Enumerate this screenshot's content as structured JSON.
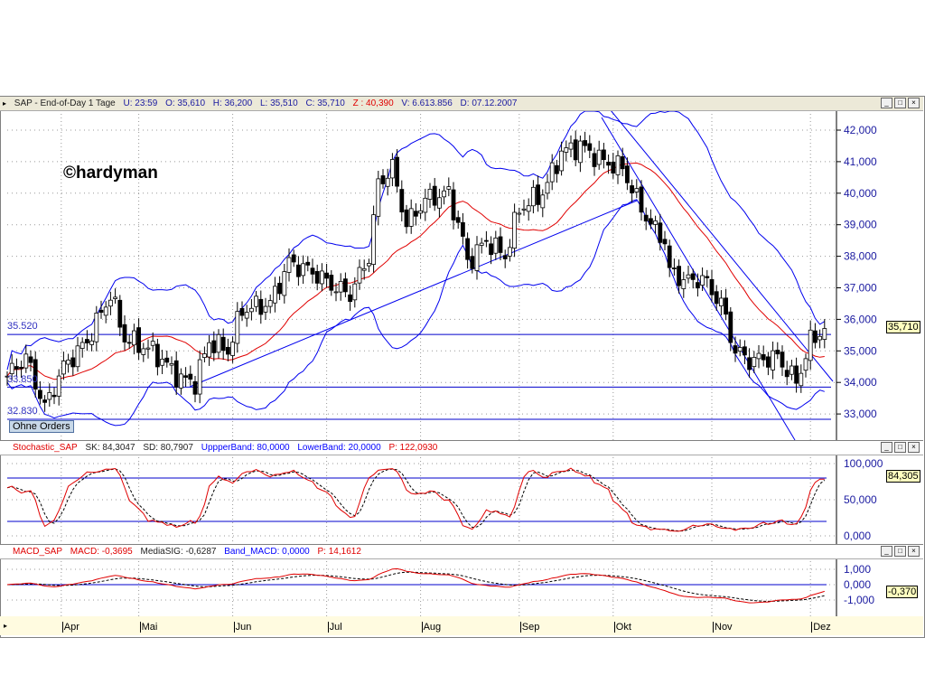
{
  "header": {
    "symbol": "SAP - End-of-Day 1 Tage",
    "u": "U: 23:59",
    "o": "O: 35,610",
    "h": "H: 36,200",
    "l": "L: 35,510",
    "c": "C: 35,710",
    "z": "Z : 40,390",
    "v": "V: 6.613.856",
    "d": "D: 07.12.2007"
  },
  "stoch_header": {
    "name": "Stochastic_SAP",
    "sk": "SK: 84,3047",
    "sd": "SD: 80,7907",
    "upper": "UppperBand: 80,0000",
    "lower": "LowerBand: 20,0000",
    "p": "P: 122,0930"
  },
  "macd_header": {
    "name": "MACD_SAP",
    "macd": "MACD: -0,3695",
    "sig": "MediaSIG: -0,6287",
    "band": "Band_MACD: 0,0000",
    "p": "P: 14,1612"
  },
  "watermark": "©hardyman",
  "orders_button": "Ohne Orders",
  "price_levels": [
    {
      "label": "35.520",
      "value": 35.52
    },
    {
      "label": "33.850",
      "value": 33.85
    },
    {
      "label": "32.830",
      "value": 32.83
    }
  ],
  "price_tag": "35,710",
  "stoch_tag": "84,305",
  "macd_tag": "-0,370",
  "window_buttons": {
    "min": "_",
    "max": "□",
    "close": "×"
  },
  "chart_data": {
    "type": "candlestick",
    "title": "SAP - End-of-Day 1 Tage",
    "price_axis": {
      "ylim": [
        32.2,
        42.6
      ],
      "ticks": [
        "42,000",
        "41,000",
        "40,000",
        "39,000",
        "38,000",
        "37,000",
        "36,000",
        "35,000",
        "34,000",
        "33,000"
      ],
      "tick_values": [
        42,
        41,
        40,
        39,
        38,
        37,
        36,
        35,
        34,
        33
      ]
    },
    "stoch_axis": {
      "ticks": [
        "100,000",
        "50,000",
        "0,000"
      ],
      "tick_values": [
        100,
        50,
        0
      ],
      "bands": [
        80,
        20
      ]
    },
    "macd_axis": {
      "ticks": [
        "1,000",
        "0,000",
        "-1,000"
      ],
      "tick_values": [
        1,
        0,
        -1
      ]
    },
    "months": [
      {
        "label": "Apr",
        "day": 11.5
      },
      {
        "label": "Mai",
        "day": 28
      },
      {
        "label": "Jun",
        "day": 48
      },
      {
        "label": "Jul",
        "day": 68
      },
      {
        "label": "Aug",
        "day": 88
      },
      {
        "label": "Sep",
        "day": 109
      },
      {
        "label": "Okt",
        "day": 129
      },
      {
        "label": "Nov",
        "day": 150
      },
      {
        "label": "Dez",
        "day": 171
      }
    ],
    "close_keypoints": [
      [
        0,
        34.2
      ],
      [
        4,
        34.8
      ],
      [
        8,
        33.2
      ],
      [
        12,
        34.5
      ],
      [
        17,
        35.3
      ],
      [
        22,
        36.8
      ],
      [
        25,
        35.4
      ],
      [
        31,
        35.0
      ],
      [
        37,
        34.1
      ],
      [
        40,
        34.0
      ],
      [
        43,
        35.3
      ],
      [
        47,
        35.0
      ],
      [
        50,
        36.3
      ],
      [
        56,
        36.5
      ],
      [
        60,
        37.8
      ],
      [
        65,
        37.5
      ],
      [
        70,
        37.0
      ],
      [
        73,
        36.8
      ],
      [
        77,
        38.0
      ],
      [
        79,
        40.3
      ],
      [
        82,
        40.8
      ],
      [
        85,
        39.0
      ],
      [
        89,
        39.8
      ],
      [
        94,
        40.0
      ],
      [
        97,
        38.5
      ],
      [
        98,
        37.8
      ],
      [
        102,
        38.5
      ],
      [
        106,
        38.0
      ],
      [
        109,
        39.5
      ],
      [
        114,
        40.0
      ],
      [
        118,
        41.3
      ],
      [
        122,
        41.5
      ],
      [
        127,
        41.0
      ],
      [
        131,
        40.8
      ],
      [
        134,
        39.8
      ],
      [
        137,
        39.0
      ],
      [
        140,
        38.5
      ],
      [
        141,
        37.5
      ],
      [
        145,
        37.2
      ],
      [
        148,
        37.3
      ],
      [
        152,
        36.5
      ],
      [
        155,
        35.0
      ],
      [
        158,
        34.7
      ],
      [
        164,
        34.8
      ],
      [
        168,
        34.0
      ],
      [
        171,
        35.3
      ],
      [
        174,
        35.71
      ]
    ],
    "indicators": [
      "Bollinger Bands",
      "Moving Average",
      "Stochastic",
      "MACD"
    ]
  }
}
